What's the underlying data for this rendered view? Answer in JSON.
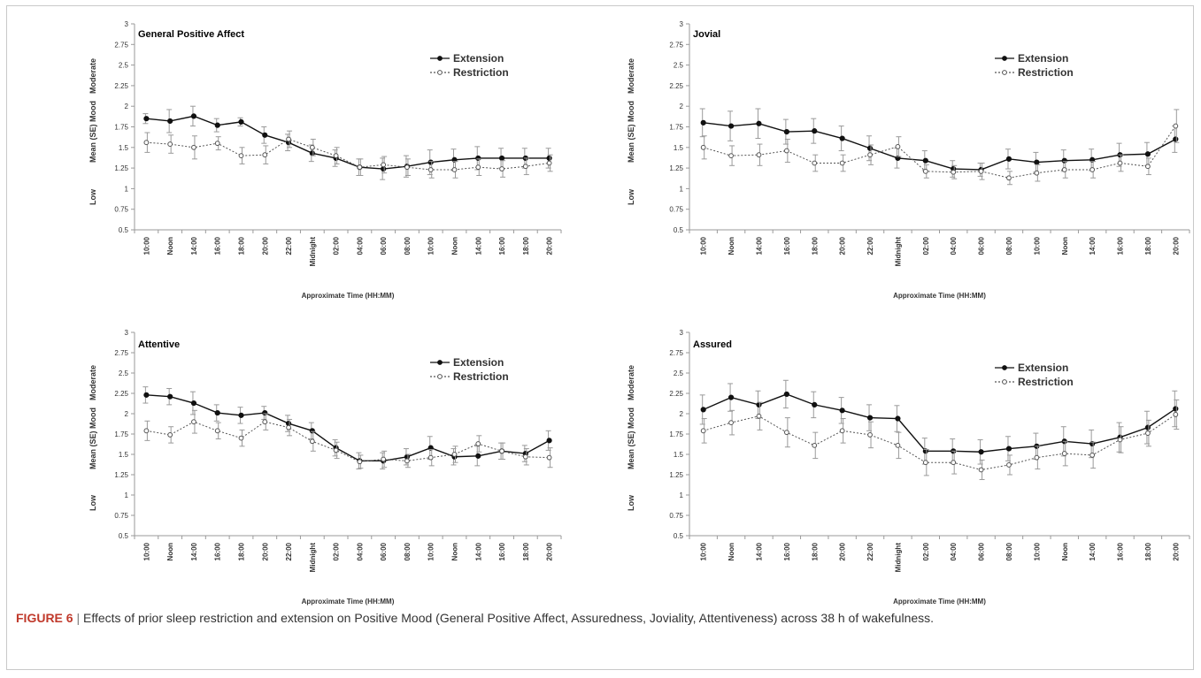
{
  "caption": {
    "label": "FIGURE 6",
    "separator": " | ",
    "text": "Effects of prior sleep restriction and extension on Positive Mood (General Positive Affect, Assuredness, Joviality, Attentiveness) across 38 h of wakefulness."
  },
  "colors": {
    "extension": "#111111",
    "restriction": "#555555",
    "errorbar": "#9a9a9a",
    "axis": "#9a9a9a"
  },
  "chart_data": [
    {
      "type": "line",
      "title": "General Positive Affect",
      "xlabel": "Approximate Time (HH:MM)",
      "ylabel": "Mean (SE) Mood",
      "ylabel_high": "Moderate",
      "ylabel_low": "Low",
      "ylim": [
        0.5,
        3
      ],
      "yticks": [
        "0.5",
        "0.75",
        "1",
        "1.25",
        "1.5",
        "1.75",
        "2",
        "2.25",
        "2.5",
        "2.75",
        "3"
      ],
      "categories": [
        "10:00",
        "Noon",
        "14:00",
        "16:00",
        "18:00",
        "20:00",
        "22:00",
        "Midnight",
        "02:00",
        "04:00",
        "06:00",
        "08:00",
        "10:00",
        "Noon",
        "14:00",
        "16:00",
        "18:00",
        "20:00"
      ],
      "legend_position": "top-right",
      "series": [
        {
          "name": "Extension",
          "style": "solid",
          "values": [
            1.85,
            1.82,
            1.88,
            1.77,
            1.81,
            1.65,
            1.56,
            1.43,
            1.37,
            1.26,
            1.24,
            1.27,
            1.32,
            1.35,
            1.37,
            1.37,
            1.37,
            1.37
          ],
          "se": [
            0.06,
            0.14,
            0.12,
            0.08,
            0.05,
            0.1,
            0.1,
            0.1,
            0.1,
            0.1,
            0.13,
            0.13,
            0.15,
            0.13,
            0.14,
            0.12,
            0.12,
            0.12
          ]
        },
        {
          "name": "Restriction",
          "style": "dotted",
          "values": [
            1.56,
            1.54,
            1.5,
            1.55,
            1.4,
            1.41,
            1.6,
            1.5,
            1.4,
            1.26,
            1.29,
            1.26,
            1.23,
            1.23,
            1.26,
            1.24,
            1.27,
            1.31
          ],
          "se": [
            0.12,
            0.11,
            0.14,
            0.08,
            0.1,
            0.11,
            0.1,
            0.1,
            0.1,
            0.1,
            0.1,
            0.1,
            0.1,
            0.1,
            0.1,
            0.1,
            0.1,
            0.1
          ]
        }
      ]
    },
    {
      "type": "line",
      "title": "Jovial",
      "xlabel": "Approximate Time (HH:MM)",
      "ylabel": "Mean (SE) Mood",
      "ylabel_high": "Moderate",
      "ylabel_low": "Low",
      "ylim": [
        0.5,
        3
      ],
      "yticks": [
        "0.5",
        "0.75",
        "1",
        "1.25",
        "1.5",
        "1.75",
        "2",
        "2.25",
        "2.5",
        "2.75",
        "3"
      ],
      "categories": [
        "10:00",
        "Noon",
        "14:00",
        "16:00",
        "18:00",
        "20:00",
        "22:00",
        "Midnight",
        "02:00",
        "04:00",
        "06:00",
        "08:00",
        "10:00",
        "Noon",
        "14:00",
        "16:00",
        "18:00",
        "20:00"
      ],
      "legend_position": "top-right",
      "series": [
        {
          "name": "Extension",
          "style": "solid",
          "values": [
            1.8,
            1.76,
            1.79,
            1.69,
            1.7,
            1.61,
            1.49,
            1.37,
            1.34,
            1.24,
            1.23,
            1.36,
            1.32,
            1.34,
            1.35,
            1.41,
            1.42,
            1.6
          ],
          "se": [
            0.17,
            0.18,
            0.18,
            0.15,
            0.15,
            0.15,
            0.15,
            0.12,
            0.12,
            0.1,
            0.08,
            0.12,
            0.12,
            0.13,
            0.13,
            0.14,
            0.14,
            0.16
          ]
        },
        {
          "name": "Restriction",
          "style": "dotted",
          "values": [
            1.5,
            1.4,
            1.41,
            1.46,
            1.31,
            1.31,
            1.41,
            1.51,
            1.21,
            1.2,
            1.21,
            1.13,
            1.19,
            1.23,
            1.23,
            1.31,
            1.27,
            1.76
          ],
          "se": [
            0.14,
            0.12,
            0.13,
            0.14,
            0.1,
            0.1,
            0.12,
            0.12,
            0.08,
            0.08,
            0.1,
            0.08,
            0.1,
            0.1,
            0.1,
            0.1,
            0.1,
            0.2
          ]
        }
      ]
    },
    {
      "type": "line",
      "title": "Attentive",
      "xlabel": "Approximate Time (HH:MM)",
      "ylabel": "Mean (SE) Mood",
      "ylabel_high": "Moderate",
      "ylabel_low": "Low",
      "ylim": [
        0.5,
        3
      ],
      "yticks": [
        "0.5",
        "0.75",
        "1",
        "1.25",
        "1.5",
        "1.75",
        "2",
        "2.25",
        "2.5",
        "2.75",
        "3"
      ],
      "categories": [
        "10:00",
        "Noon",
        "14:00",
        "16:00",
        "18:00",
        "20:00",
        "22:00",
        "Midnight",
        "02:00",
        "04:00",
        "06:00",
        "08:00",
        "10:00",
        "Noon",
        "14:00",
        "16:00",
        "18:00",
        "20:00"
      ],
      "legend_position": "top-right",
      "series": [
        {
          "name": "Extension",
          "style": "solid",
          "values": [
            2.23,
            2.21,
            2.13,
            2.01,
            1.98,
            2.01,
            1.88,
            1.79,
            1.58,
            1.42,
            1.42,
            1.47,
            1.58,
            1.47,
            1.48,
            1.54,
            1.51,
            1.67
          ],
          "se": [
            0.1,
            0.1,
            0.14,
            0.1,
            0.1,
            0.08,
            0.1,
            0.1,
            0.1,
            0.1,
            0.1,
            0.1,
            0.14,
            0.1,
            0.12,
            0.1,
            0.1,
            0.12
          ]
        },
        {
          "name": "Restriction",
          "style": "dotted",
          "values": [
            1.79,
            1.74,
            1.9,
            1.79,
            1.7,
            1.9,
            1.83,
            1.66,
            1.55,
            1.41,
            1.44,
            1.42,
            1.46,
            1.5,
            1.63,
            1.54,
            1.47,
            1.46
          ],
          "se": [
            0.12,
            0.1,
            0.14,
            0.1,
            0.1,
            0.1,
            0.1,
            0.12,
            0.1,
            0.08,
            0.1,
            0.08,
            0.1,
            0.1,
            0.1,
            0.1,
            0.1,
            0.12
          ]
        }
      ]
    },
    {
      "type": "line",
      "title": "Assured",
      "xlabel": "Approximate Time (HH:MM)",
      "ylabel": "Mean (SE) Mood",
      "ylabel_high": "Moderate",
      "ylabel_low": "Low",
      "ylim": [
        0.5,
        3
      ],
      "yticks": [
        "0.5",
        "0.75",
        "1",
        "1.25",
        "1.5",
        "1.75",
        "2",
        "2.25",
        "2.5",
        "2.75",
        "3"
      ],
      "categories": [
        "10:00",
        "Noon",
        "14:00",
        "16:00",
        "18:00",
        "20:00",
        "22:00",
        "Midnight",
        "02:00",
        "04:00",
        "06:00",
        "08:00",
        "10:00",
        "Noon",
        "14:00",
        "16:00",
        "18:00",
        "20:00"
      ],
      "legend_position": "top-right",
      "series": [
        {
          "name": "Extension",
          "style": "solid",
          "values": [
            2.05,
            2.2,
            2.11,
            2.24,
            2.11,
            2.04,
            1.95,
            1.94,
            1.54,
            1.54,
            1.53,
            1.57,
            1.6,
            1.66,
            1.63,
            1.71,
            1.83,
            2.06
          ],
          "se": [
            0.18,
            0.17,
            0.17,
            0.17,
            0.16,
            0.16,
            0.16,
            0.16,
            0.16,
            0.15,
            0.15,
            0.15,
            0.16,
            0.18,
            0.17,
            0.18,
            0.2,
            0.22
          ]
        },
        {
          "name": "Restriction",
          "style": "dotted",
          "values": [
            1.79,
            1.89,
            1.97,
            1.77,
            1.61,
            1.79,
            1.74,
            1.61,
            1.4,
            1.4,
            1.31,
            1.37,
            1.46,
            1.51,
            1.49,
            1.68,
            1.76,
            1.99
          ],
          "se": [
            0.15,
            0.15,
            0.17,
            0.18,
            0.16,
            0.15,
            0.16,
            0.16,
            0.16,
            0.14,
            0.12,
            0.12,
            0.14,
            0.15,
            0.16,
            0.16,
            0.16,
            0.18
          ]
        }
      ]
    }
  ]
}
